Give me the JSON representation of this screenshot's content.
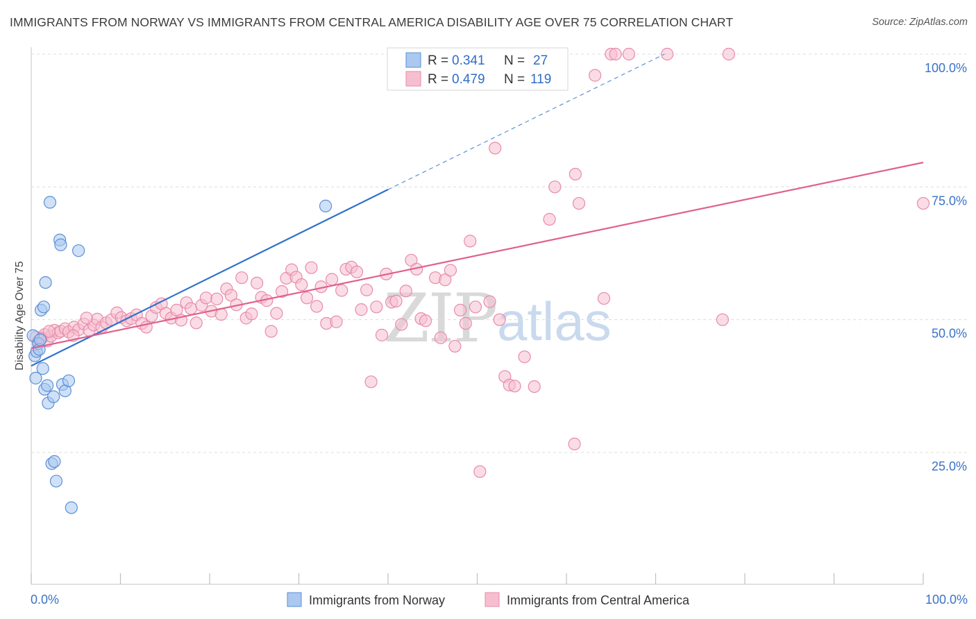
{
  "header": {
    "title": "IMMIGRANTS FROM NORWAY VS IMMIGRANTS FROM CENTRAL AMERICA DISABILITY AGE OVER 75 CORRELATION CHART",
    "source": "Source: ZipAtlas.com"
  },
  "watermark": {
    "zip": "ZIP",
    "atlas": "atlas"
  },
  "legend": {
    "r_label": "R =",
    "n_label": "N =",
    "rows": [
      {
        "r": "0.341",
        "n": "27"
      },
      {
        "r": "0.479",
        "n": "119"
      }
    ]
  },
  "colors": {
    "norway_fill": "#aac8f0",
    "norway_stroke": "#5b8fd6",
    "norway_line": "#2f72cc",
    "ca_fill": "#f6bfd0",
    "ca_stroke": "#e88aaa",
    "ca_line": "#e0608c",
    "grid": "#dcdcdc",
    "tick_text": "#3a72c8"
  },
  "chart_data": {
    "type": "scatter",
    "title": "IMMIGRANTS FROM NORWAY VS IMMIGRANTS FROM CENTRAL AMERICA DISABILITY AGE OVER 75 CORRELATION CHART",
    "xlabel": "",
    "ylabel": "Disability Age Over 75",
    "xlim": [
      0,
      100
    ],
    "ylim": [
      0,
      102
    ],
    "x_tick_labels": [
      "0.0%",
      "100.0%"
    ],
    "y_ticks": [
      25,
      50,
      75,
      100
    ],
    "y_tick_labels": [
      "25.0%",
      "50.0%",
      "75.0%",
      "100.0%"
    ],
    "bottom_legend": [
      "Immigrants from Norway",
      "Immigrants from Central America"
    ],
    "series": [
      {
        "name": "Immigrants from Norway",
        "r": 0.341,
        "n": 27,
        "trend": {
          "x0": 0,
          "y0": 41.3,
          "x1": 40,
          "y1": 74.5,
          "dash_to_x": 71,
          "dash_to_y": 100
        },
        "points": [
          [
            0.2,
            47.0
          ],
          [
            0.4,
            43.2
          ],
          [
            0.6,
            44.0
          ],
          [
            0.8,
            45.5
          ],
          [
            0.9,
            44.4
          ],
          [
            0.5,
            39.0
          ],
          [
            1.1,
            51.8
          ],
          [
            1.4,
            52.4
          ],
          [
            1.3,
            40.8
          ],
          [
            1.6,
            57.0
          ],
          [
            2.1,
            72.1
          ],
          [
            3.2,
            65.0
          ],
          [
            3.3,
            64.1
          ],
          [
            5.3,
            63.0
          ],
          [
            1.5,
            36.9
          ],
          [
            1.8,
            37.6
          ],
          [
            1.9,
            34.3
          ],
          [
            2.5,
            35.5
          ],
          [
            3.5,
            37.8
          ],
          [
            3.8,
            36.6
          ],
          [
            4.2,
            38.5
          ],
          [
            2.3,
            22.9
          ],
          [
            2.6,
            23.3
          ],
          [
            2.8,
            19.6
          ],
          [
            4.5,
            14.6
          ],
          [
            33.0,
            71.4
          ],
          [
            1.0,
            46.2
          ]
        ]
      },
      {
        "name": "Immigrants from Central America",
        "r": 0.479,
        "n": 119,
        "trend": {
          "x0": 0,
          "y0": 44.6,
          "x1": 100,
          "y1": 79.6
        },
        "points": [
          [
            0.5,
            46.7
          ],
          [
            0.8,
            45.9
          ],
          [
            1.2,
            46.6
          ],
          [
            1.5,
            47.2
          ],
          [
            1.8,
            46.0
          ],
          [
            2.2,
            46.9
          ],
          [
            2.6,
            48.0
          ],
          [
            3.0,
            47.5
          ],
          [
            3.3,
            47.8
          ],
          [
            3.8,
            48.3
          ],
          [
            4.2,
            47.7
          ],
          [
            4.8,
            48.6
          ],
          [
            5.3,
            48.1
          ],
          [
            5.9,
            49.2
          ],
          [
            6.5,
            48.0
          ],
          [
            7.0,
            49.0
          ],
          [
            7.4,
            50.1
          ],
          [
            7.9,
            48.6
          ],
          [
            8.4,
            49.4
          ],
          [
            9.0,
            50.0
          ],
          [
            9.6,
            51.3
          ],
          [
            10.1,
            50.4
          ],
          [
            10.7,
            49.8
          ],
          [
            11.2,
            50.2
          ],
          [
            11.8,
            50.9
          ],
          [
            12.4,
            49.3
          ],
          [
            12.9,
            48.6
          ],
          [
            13.5,
            50.7
          ],
          [
            14.0,
            52.3
          ],
          [
            14.6,
            53.0
          ],
          [
            15.1,
            51.2
          ],
          [
            15.7,
            50.3
          ],
          [
            16.3,
            51.8
          ],
          [
            16.8,
            49.9
          ],
          [
            17.4,
            53.2
          ],
          [
            17.9,
            52.1
          ],
          [
            18.5,
            49.4
          ],
          [
            19.1,
            52.7
          ],
          [
            19.6,
            54.1
          ],
          [
            20.2,
            51.6
          ],
          [
            20.8,
            53.9
          ],
          [
            21.3,
            51.0
          ],
          [
            21.9,
            55.8
          ],
          [
            22.4,
            54.6
          ],
          [
            23.0,
            52.8
          ],
          [
            23.6,
            57.9
          ],
          [
            24.1,
            50.3
          ],
          [
            24.7,
            51.1
          ],
          [
            25.3,
            56.9
          ],
          [
            25.8,
            54.2
          ],
          [
            26.4,
            53.6
          ],
          [
            26.9,
            47.8
          ],
          [
            27.5,
            51.2
          ],
          [
            28.1,
            55.3
          ],
          [
            28.6,
            57.8
          ],
          [
            29.2,
            59.4
          ],
          [
            29.7,
            58.0
          ],
          [
            30.3,
            56.6
          ],
          [
            30.9,
            54.1
          ],
          [
            31.4,
            59.8
          ],
          [
            32.0,
            52.5
          ],
          [
            32.5,
            56.2
          ],
          [
            33.1,
            49.3
          ],
          [
            33.7,
            57.6
          ],
          [
            34.2,
            49.6
          ],
          [
            34.8,
            55.5
          ],
          [
            35.3,
            59.5
          ],
          [
            35.9,
            59.9
          ],
          [
            36.5,
            59.0
          ],
          [
            37.0,
            51.9
          ],
          [
            37.6,
            55.6
          ],
          [
            38.1,
            38.3
          ],
          [
            38.7,
            52.4
          ],
          [
            39.3,
            47.1
          ],
          [
            39.8,
            58.6
          ],
          [
            40.4,
            53.3
          ],
          [
            40.9,
            53.5
          ],
          [
            41.5,
            49.1
          ],
          [
            42.0,
            55.4
          ],
          [
            42.6,
            61.2
          ],
          [
            43.2,
            59.5
          ],
          [
            43.7,
            50.2
          ],
          [
            44.2,
            49.8
          ],
          [
            45.3,
            57.9
          ],
          [
            45.9,
            46.6
          ],
          [
            46.4,
            57.5
          ],
          [
            47.0,
            59.3
          ],
          [
            47.5,
            45.0
          ],
          [
            48.1,
            51.8
          ],
          [
            48.7,
            49.3
          ],
          [
            49.2,
            64.8
          ],
          [
            49.8,
            52.4
          ],
          [
            50.3,
            21.4
          ],
          [
            51.4,
            53.4
          ],
          [
            52.0,
            82.3
          ],
          [
            52.5,
            50.0
          ],
          [
            53.1,
            39.3
          ],
          [
            53.6,
            37.7
          ],
          [
            54.2,
            37.5
          ],
          [
            55.3,
            43.0
          ],
          [
            56.4,
            37.4
          ],
          [
            58.1,
            68.9
          ],
          [
            58.7,
            75.0
          ],
          [
            60.9,
            26.6
          ],
          [
            61.0,
            77.4
          ],
          [
            61.4,
            71.9
          ],
          [
            63.2,
            96.0
          ],
          [
            64.2,
            54.0
          ],
          [
            65.0,
            100.0
          ],
          [
            65.5,
            100.0
          ],
          [
            67.0,
            100.0
          ],
          [
            78.2,
            100.0
          ],
          [
            77.5,
            50.0
          ],
          [
            100.0,
            71.9
          ],
          [
            71.3,
            100.0
          ],
          [
            1.1,
            46.4
          ],
          [
            2.0,
            47.8
          ],
          [
            4.7,
            47.0
          ],
          [
            6.2,
            50.3
          ]
        ]
      }
    ]
  }
}
